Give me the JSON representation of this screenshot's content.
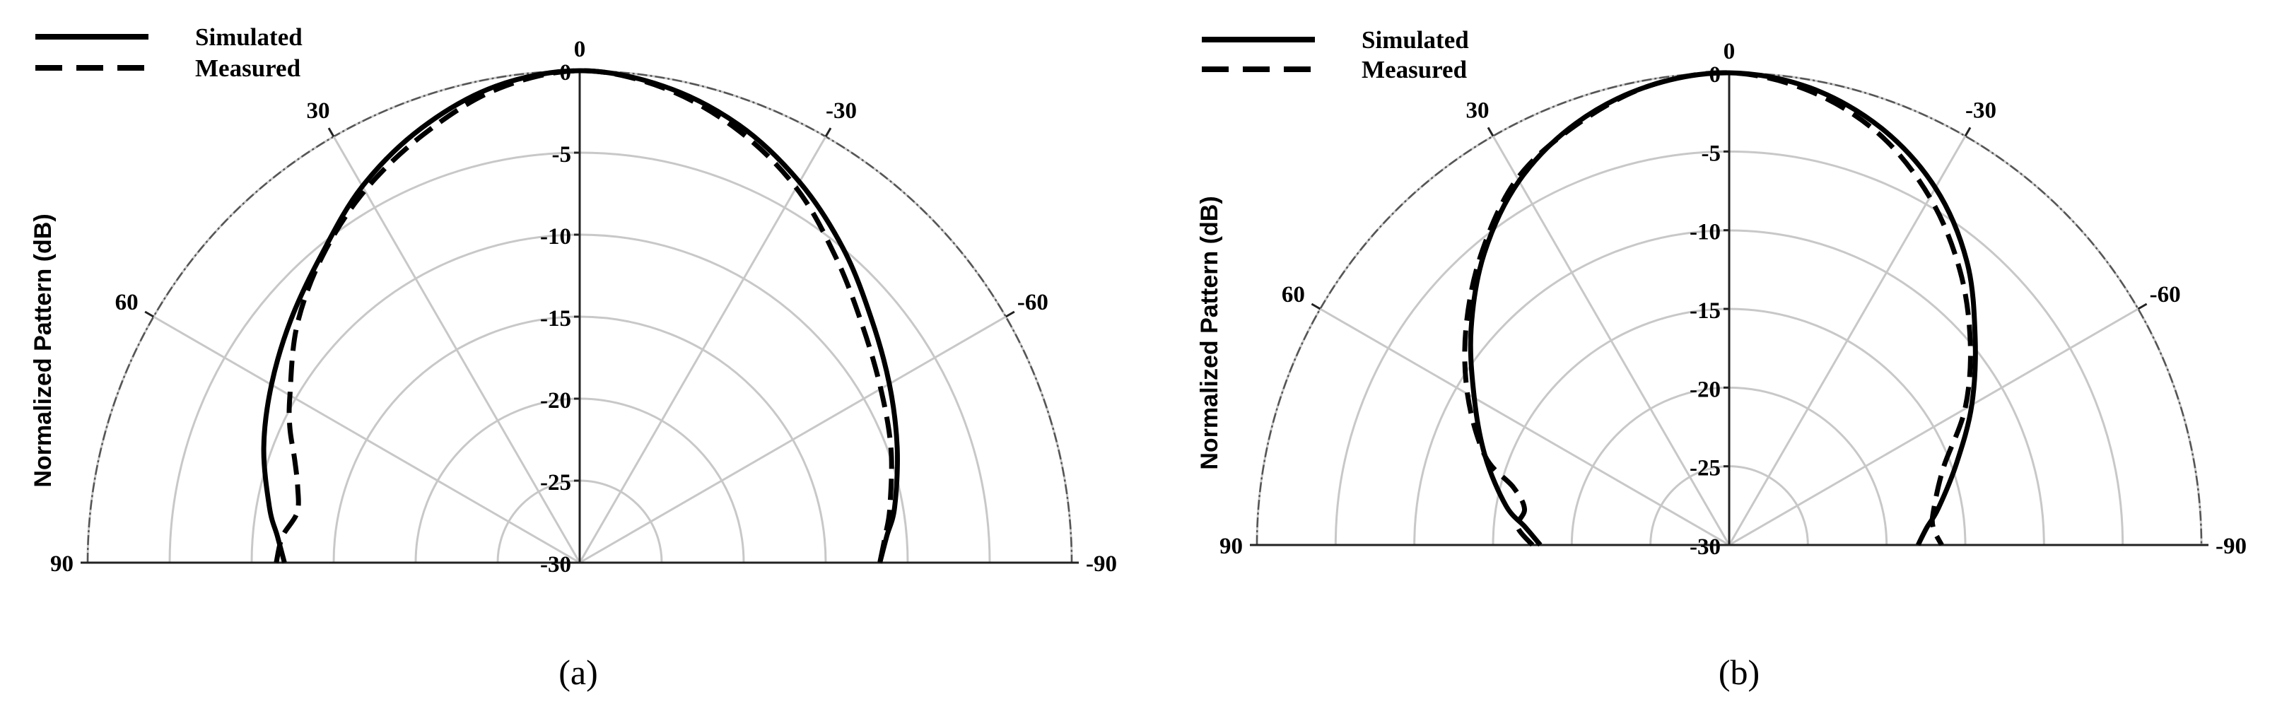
{
  "chart_data": [
    {
      "type": "polar",
      "panel_label": "(a)",
      "ylabel": "Normalized Pattern (dB)",
      "radial_range": [
        -30,
        0
      ],
      "radial_ticks": [
        0,
        -5,
        -10,
        -15,
        -20,
        -25,
        -30
      ],
      "angle_range": [
        -90,
        90
      ],
      "angle_ticks": [
        0,
        30,
        -30,
        60,
        -60,
        90,
        -90
      ],
      "grid": true,
      "legend_position": "top-left",
      "series": [
        {
          "name": "Simulated",
          "style": "solid",
          "theta": [
            90,
            85,
            80,
            70,
            60,
            50,
            40,
            30,
            20,
            10,
            0,
            -10,
            -20,
            -30,
            -40,
            -50,
            -60,
            -70,
            -80,
            -85,
            -90
          ],
          "r": [
            -12,
            -11.5,
            -10.8,
            -9.5,
            -8.3,
            -7,
            -5.5,
            -3.5,
            -1.8,
            -0.5,
            0,
            -0.5,
            -1.6,
            -3.2,
            -5,
            -6.8,
            -8.2,
            -9.4,
            -10.5,
            -11.2,
            -11.7
          ]
        },
        {
          "name": "Measured",
          "style": "dashed",
          "theta": [
            90,
            85,
            80,
            75,
            70,
            65,
            60,
            50,
            40,
            30,
            20,
            10,
            0,
            -10,
            -20,
            -30,
            -40,
            -50,
            -60,
            -70,
            -80,
            -85,
            -90
          ],
          "r": [
            -11.5,
            -11.8,
            -12.5,
            -12.2,
            -11.5,
            -10.5,
            -9.6,
            -7.5,
            -5.6,
            -3.8,
            -2.2,
            -0.7,
            0,
            -0.6,
            -1.9,
            -3.6,
            -5.7,
            -7.5,
            -8.8,
            -9.8,
            -10.8,
            -11.3,
            -11.7
          ]
        }
      ]
    },
    {
      "type": "polar",
      "panel_label": "(b)",
      "ylabel": "Normalized Pattern (dB)",
      "radial_range": [
        -30,
        0
      ],
      "radial_ticks": [
        0,
        -5,
        -10,
        -15,
        -20,
        -25,
        -30
      ],
      "angle_range": [
        -90,
        90
      ],
      "angle_ticks": [
        0,
        30,
        -30,
        60,
        -60,
        90,
        -90
      ],
      "grid": true,
      "legend_position": "top-left",
      "series": [
        {
          "name": "Simulated",
          "style": "solid",
          "theta": [
            90,
            85,
            80,
            70,
            60,
            50,
            40,
            30,
            20,
            10,
            0,
            -10,
            -20,
            -30,
            -40,
            -50,
            -60,
            -70,
            -80,
            -85,
            -90
          ],
          "r": [
            -18,
            -17,
            -15.6,
            -13.5,
            -11.3,
            -8.6,
            -5.8,
            -3.3,
            -1.5,
            -0.4,
            0,
            -0.5,
            -1.8,
            -3.8,
            -6.5,
            -9.6,
            -12.2,
            -14.6,
            -16.5,
            -17.4,
            -18
          ]
        },
        {
          "name": "Measured",
          "style": "dashed",
          "theta": [
            90,
            85,
            80,
            75,
            70,
            60,
            50,
            40,
            30,
            20,
            10,
            0,
            -10,
            -20,
            -30,
            -40,
            -50,
            -60,
            -70,
            -80,
            -85,
            -90
          ],
          "r": [
            -17.5,
            -16.5,
            -16.8,
            -15.8,
            -13.5,
            -10.8,
            -8.2,
            -5.6,
            -3.1,
            -1.6,
            -0.4,
            0,
            -0.7,
            -2.2,
            -4.5,
            -7.2,
            -10,
            -12.7,
            -15.5,
            -16.8,
            -17,
            -16.5
          ]
        }
      ]
    }
  ]
}
